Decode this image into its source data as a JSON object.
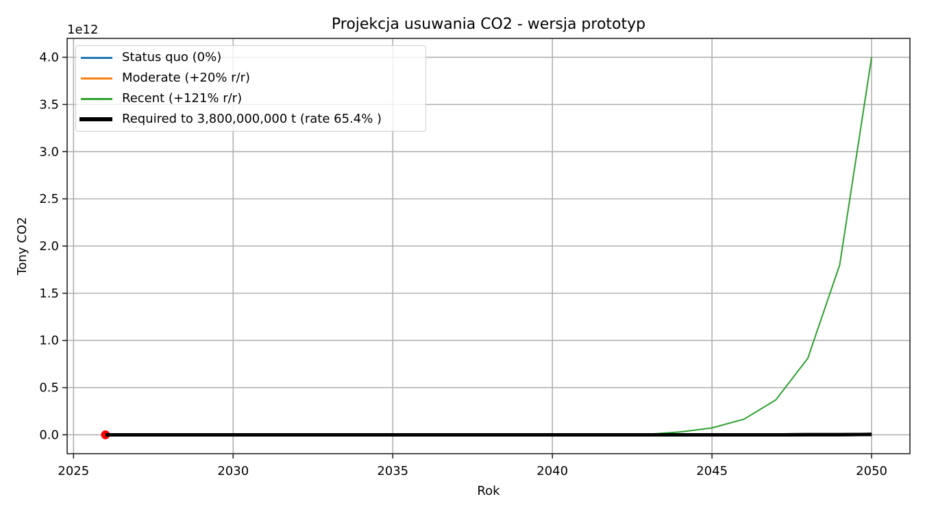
{
  "chart_data": {
    "type": "line",
    "title": "Projekcja usuwania CO2 - wersja prototyp",
    "xlabel": "Rok",
    "ylabel": "Tony CO2",
    "y_offset_label": "1e12",
    "xlim": [
      2024.8,
      2051.2
    ],
    "ylim": [
      -0.2,
      4.2
    ],
    "x_ticks": [
      2025,
      2030,
      2035,
      2040,
      2045,
      2050
    ],
    "x_tick_labels": [
      "2025",
      "2030",
      "2035",
      "2040",
      "2045",
      "2050"
    ],
    "y_ticks": [
      0.0,
      0.5,
      1.0,
      1.5,
      2.0,
      2.5,
      3.0,
      3.5,
      4.0
    ],
    "y_tick_labels": [
      "0.0",
      "0.5",
      "1.0",
      "1.5",
      "2.0",
      "2.5",
      "3.0",
      "3.5",
      "4.0"
    ],
    "y_scale": 1000000000000.0,
    "grid": true,
    "legend_position": "upper left",
    "x": [
      2026,
      2027,
      2028,
      2029,
      2030,
      2031,
      2032,
      2033,
      2034,
      2035,
      2036,
      2037,
      2038,
      2039,
      2040,
      2041,
      2042,
      2043,
      2044,
      2045,
      2046,
      2047,
      2048,
      2049,
      2050
    ],
    "series": [
      {
        "name": "Status quo (0%)",
        "color": "#1f77b4",
        "linewidth": 2,
        "values": [
          0,
          0,
          0,
          0,
          0,
          0,
          0,
          0,
          0,
          0,
          0,
          0,
          0,
          0,
          0,
          0,
          0,
          0,
          0,
          0,
          0,
          0,
          0,
          0,
          0
        ]
      },
      {
        "name": "Moderate (+20% r/r)",
        "color": "#ff7f0e",
        "linewidth": 2,
        "values": [
          0,
          0,
          0,
          0,
          0,
          0,
          0,
          0,
          0,
          0,
          0,
          0,
          0,
          0,
          0,
          0,
          0,
          0,
          0,
          0,
          0,
          0,
          0,
          0,
          0
        ]
      },
      {
        "name": "Recent (+121% r/r)",
        "color": "#2ca02c",
        "linewidth": 2,
        "values": [
          0,
          0,
          0,
          0,
          0,
          0,
          0,
          0,
          0,
          0,
          0,
          0,
          0,
          0,
          0,
          0.0003,
          0.0012,
          0.006,
          0.03,
          0.073,
          0.165,
          0.37,
          0.81,
          1.8,
          4.0
        ]
      },
      {
        "name": "Required to 3,800,000,000 t (rate 65.4% )",
        "color": "#000000",
        "linewidth": 5,
        "values": [
          0,
          0,
          0,
          0,
          0,
          0,
          0,
          0,
          0,
          0,
          0,
          0,
          0,
          0,
          0,
          0,
          0,
          0,
          0,
          0,
          0,
          0,
          0.001,
          0.002,
          0.0038
        ]
      }
    ],
    "markers": [
      {
        "x": 2026,
        "y": 0,
        "color": "#ff0000",
        "shape": "circle"
      }
    ]
  },
  "legend": {
    "items": [
      {
        "label": "Status quo (0%)",
        "color": "#1f77b4"
      },
      {
        "label": "Moderate (+20% r/r)",
        "color": "#ff7f0e"
      },
      {
        "label": "Recent (+121% r/r)",
        "color": "#2ca02c"
      },
      {
        "label": "Required to 3,800,000,000 t (rate 65.4% )",
        "color": "#000000"
      }
    ]
  }
}
